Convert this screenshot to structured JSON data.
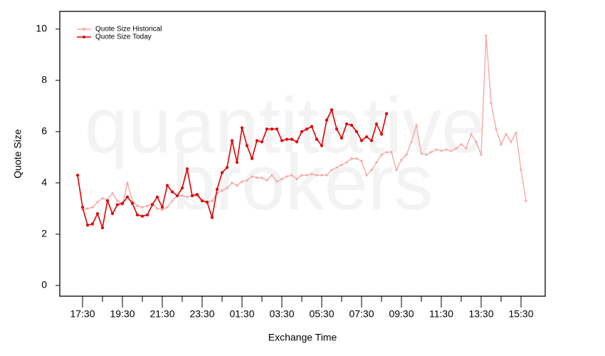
{
  "chart_data": {
    "type": "line",
    "x_label": "Exchange Time",
    "y_label": "Quote Size",
    "watermark": [
      "quantitative",
      "brokers"
    ],
    "categories": [
      null,
      "17:30",
      null,
      null,
      null,
      null,
      null,
      null,
      null,
      "19:30",
      null,
      null,
      null,
      null,
      null,
      null,
      null,
      "21:30",
      null,
      null,
      null,
      null,
      null,
      null,
      null,
      "23:30",
      null,
      null,
      null,
      null,
      null,
      null,
      null,
      "01:30",
      null,
      null,
      null,
      null,
      null,
      null,
      null,
      "03:30",
      null,
      null,
      null,
      null,
      null,
      null,
      null,
      "05:30",
      null,
      null,
      null,
      null,
      null,
      null,
      null,
      "07:30",
      null,
      null,
      null,
      null,
      null,
      null,
      null,
      "09:30",
      null,
      null,
      null,
      null,
      null,
      null,
      null,
      "11:30",
      null,
      null,
      null,
      null,
      null,
      null,
      null,
      "13:30",
      null,
      null,
      null,
      null,
      null,
      null,
      null,
      "15:30",
      null
    ],
    "series": [
      {
        "name": "Quote Size Historical",
        "color": "#f7a8a8",
        "values": [
          null,
          2.95,
          3.0,
          3.05,
          3.25,
          3.4,
          3.35,
          3.6,
          3.3,
          3.15,
          4.0,
          3.3,
          3.1,
          3.05,
          3.1,
          3.2,
          3.0,
          2.95,
          3.05,
          3.3,
          3.5,
          3.5,
          3.45,
          3.5,
          3.5,
          3.3,
          3.25,
          3.3,
          3.6,
          3.7,
          3.8,
          4.0,
          3.9,
          4.05,
          4.1,
          4.25,
          4.2,
          4.2,
          4.1,
          4.3,
          4.05,
          4.15,
          4.25,
          4.3,
          4.15,
          4.3,
          4.3,
          4.35,
          4.3,
          4.3,
          4.3,
          4.5,
          4.6,
          4.7,
          4.8,
          4.95,
          4.95,
          4.85,
          4.3,
          4.5,
          4.8,
          5.1,
          5.2,
          5.2,
          4.5,
          4.9,
          5.1,
          5.6,
          6.25,
          5.15,
          5.1,
          5.2,
          5.3,
          5.25,
          5.3,
          5.25,
          5.35,
          5.5,
          5.35,
          5.9,
          5.6,
          5.1,
          9.75,
          7.1,
          6.1,
          5.5,
          5.9,
          5.6,
          5.95,
          4.5,
          3.3
        ]
      },
      {
        "name": "Quote Size Today",
        "color": "#e00000",
        "values": [
          4.3,
          3.05,
          2.35,
          2.4,
          2.8,
          2.25,
          3.3,
          2.8,
          3.15,
          3.2,
          3.45,
          3.2,
          2.75,
          2.7,
          2.75,
          3.15,
          3.45,
          3.05,
          3.9,
          3.65,
          3.5,
          3.8,
          4.55,
          3.5,
          3.55,
          3.3,
          3.25,
          2.65,
          3.75,
          4.4,
          4.6,
          5.65,
          4.8,
          6.15,
          5.45,
          4.95,
          5.65,
          5.6,
          6.1,
          6.1,
          6.1,
          5.65,
          5.7,
          5.7,
          5.6,
          6.0,
          6.1,
          6.2,
          5.7,
          5.45,
          6.45,
          6.85,
          6.1,
          5.75,
          6.3,
          6.25,
          6.0,
          5.65,
          5.8,
          5.65,
          6.3,
          5.9,
          6.7,
          null,
          null,
          null,
          null,
          null,
          null,
          null,
          null,
          null,
          null,
          null,
          null,
          null,
          null,
          null,
          null,
          null,
          null,
          null,
          null,
          null,
          null,
          null,
          null,
          null,
          null,
          null,
          null
        ]
      }
    ],
    "ylim": [
      -0.42,
      10.69
    ],
    "yticks": [
      0,
      2,
      4,
      6,
      8,
      10
    ],
    "legend": "top-left"
  }
}
